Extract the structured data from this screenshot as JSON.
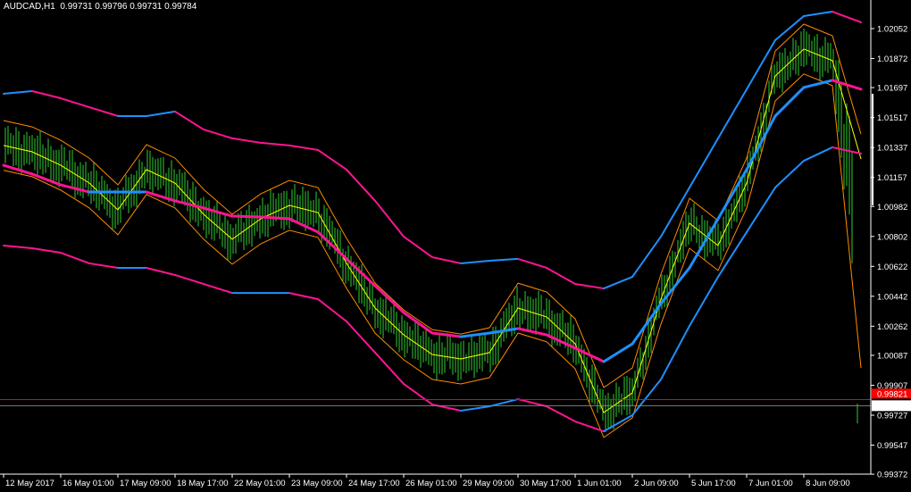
{
  "header": {
    "symbol_timeframe": "AUDCAD,H1",
    "ohlc": "0.99731 0.99796 0.99731 0.99784"
  },
  "colors": {
    "background": "#000000",
    "bars": "#32cd32",
    "ma_rising": "#1e90ff",
    "ma_falling": "#ff1493",
    "fast_line": "#ffff00",
    "fast_bands": "#ff8c00",
    "bid_line": "#808080",
    "alert_line": "#ff0000",
    "axis": "#ffffff"
  },
  "chart_data": {
    "type": "line",
    "title": "AUDCAD,H1",
    "ylim": [
      0.993,
      1.022
    ],
    "grid": false,
    "y_ticks": [
      "1.02052",
      "1.01872",
      "1.01697",
      "1.01517",
      "1.01337",
      "1.01157",
      "1.00982",
      "1.00802",
      "1.00622",
      "1.00442",
      "1.00262",
      "1.00087",
      "0.99907",
      "0.99727",
      "0.99547",
      "0.99372"
    ],
    "x_ticks": [
      "12 May 2017",
      "16 May 01:00",
      "17 May 09:00",
      "18 May 17:00",
      "22 May 01:00",
      "23 May 09:00",
      "24 May 17:00",
      "26 May 01:00",
      "29 May 09:00",
      "30 May 17:00",
      "1 Jun 01:00",
      "2 Jun 09:00",
      "5 Jun 17:00",
      "7 Jun 01:00",
      "8 Jun 09:00"
    ],
    "last_bar": {
      "open": 0.99731,
      "high": 0.99796,
      "low": 0.99731,
      "close": 0.99784
    },
    "bid_price": "0.99784",
    "alert_price": "0.99821",
    "series": [
      {
        "id": "ma_center",
        "values": [
          1.0123,
          1.01177,
          1.01112,
          1.01069,
          1.01069,
          1.01069,
          1.01016,
          1.00973,
          1.00924,
          1.00919,
          1.00908,
          1.00828,
          1.00667,
          1.00505,
          1.00344,
          1.00221,
          1.00199,
          1.00221,
          1.00248,
          1.0021,
          1.0013,
          1.00049,
          1.00156,
          1.00398,
          1.00613,
          1.00908,
          1.01204,
          1.01526,
          1.01698,
          1.01741,
          1.01687
        ]
      },
      {
        "id": "band_upper",
        "values": [
          1.0166,
          1.01676,
          1.01633,
          1.01579,
          1.01526,
          1.01526,
          1.01553,
          1.01445,
          1.01392,
          1.01365,
          1.01349,
          1.01322,
          1.01204,
          1.01016,
          1.00801,
          1.00677,
          1.0064,
          1.00656,
          1.00667,
          1.00613,
          1.00516,
          1.00489,
          1.00559,
          1.00801,
          1.01096,
          1.01392,
          1.01687,
          1.01982,
          1.02127,
          1.02154,
          1.0209
        ]
      },
      {
        "id": "band_lower",
        "values": [
          1.00747,
          1.00731,
          1.00704,
          1.0064,
          1.00613,
          1.00613,
          1.0057,
          1.00516,
          1.00462,
          1.00462,
          1.00462,
          1.00425,
          1.00291,
          1.00103,
          0.99915,
          0.99791,
          0.99754,
          0.9978,
          0.99823,
          0.9978,
          0.99689,
          0.9963,
          0.99727,
          0.99942,
          1.00264,
          1.00559,
          1.00828,
          1.01096,
          1.01257,
          1.01338,
          1.013
        ]
      },
      {
        "id": "fast_line",
        "values": [
          1.01349,
          1.01311,
          1.0123,
          1.01123,
          1.00962,
          1.01204,
          1.01123,
          1.00935,
          1.00785,
          1.00908,
          1.00989,
          1.00946,
          1.0064,
          1.00371,
          1.0021,
          1.00092,
          1.00065,
          1.00103,
          1.00371,
          1.00318,
          1.00156,
          0.99743,
          0.99861,
          1.00425,
          1.00881,
          1.00747,
          1.01123,
          1.01767,
          1.01929,
          1.01859,
          1.01268
        ]
      },
      {
        "id": "fast_upper",
        "values": [
          1.01499,
          1.01461,
          1.0138,
          1.01273,
          1.01112,
          1.01354,
          1.01273,
          1.01085,
          1.00935,
          1.01058,
          1.01139,
          1.01096,
          1.0079,
          1.00521,
          1.0036,
          1.00242,
          1.00215,
          1.00253,
          1.00521,
          1.00468,
          1.00306,
          0.99893,
          1.00011,
          1.00575,
          1.01031,
          1.00897,
          1.01273,
          1.01917,
          1.02079,
          1.02009,
          1.01418
        ]
      },
      {
        "id": "fast_lower",
        "values": [
          1.01199,
          1.01161,
          1.0108,
          1.00973,
          1.00812,
          1.01054,
          1.00973,
          1.00785,
          1.00635,
          1.00758,
          1.00839,
          1.00796,
          1.0049,
          1.00221,
          1.0006,
          0.99942,
          0.99915,
          0.99953,
          1.00221,
          1.00168,
          1.00006,
          0.99593,
          0.99711,
          1.00275,
          1.00731,
          1.00597,
          1.00973,
          1.01617,
          1.01779,
          1.01709,
          1.00011
        ]
      }
    ]
  }
}
